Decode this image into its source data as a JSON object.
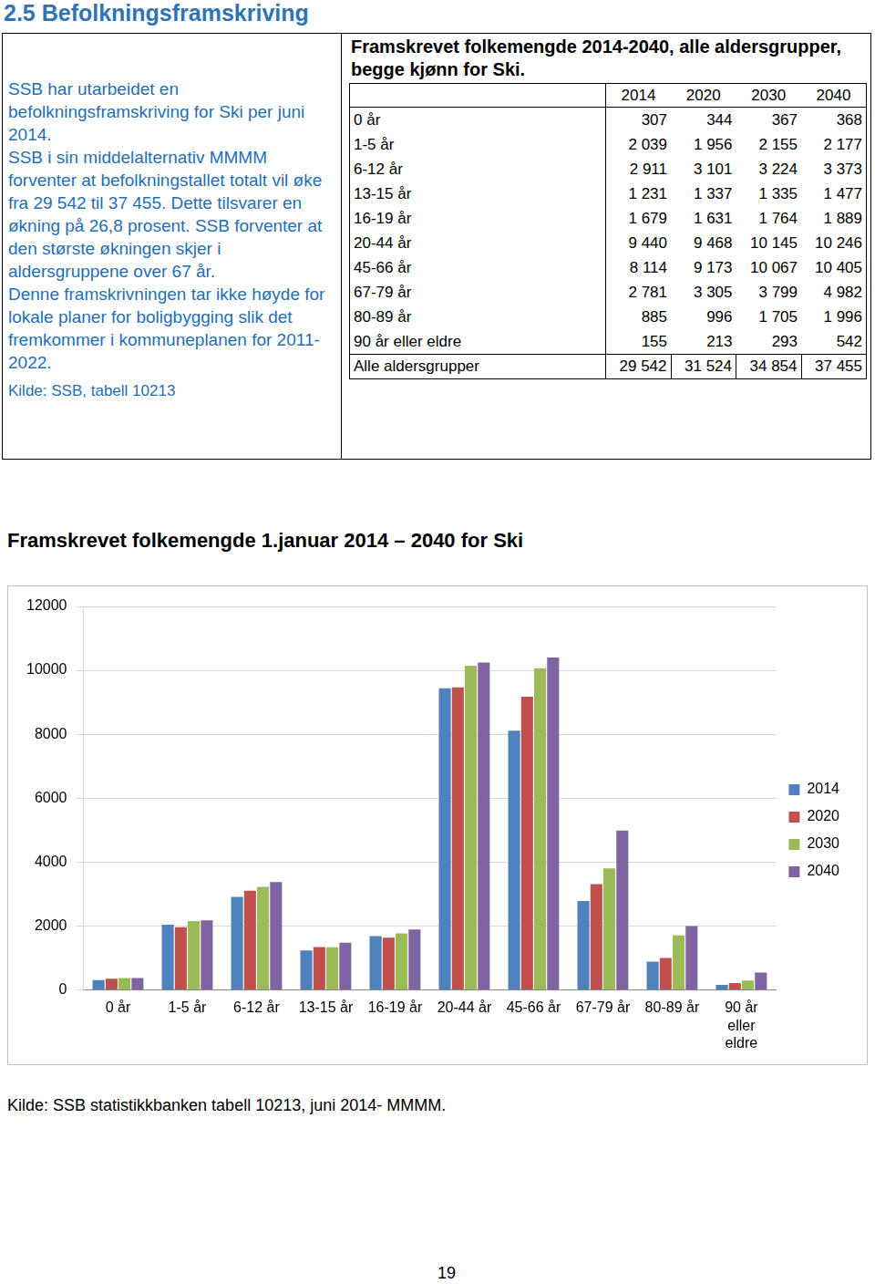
{
  "heading": "2.5 Befolkningsframskriving",
  "intro": {
    "paragraphs": [
      "SSB har utarbeidet en befolkningsframskriving for Ski per juni 2014.",
      "SSB i sin middelalternativ MMMM forventer at befolkningstallet totalt vil øke fra 29 542 til 37 455. Dette tilsvarer en økning på 26,8 prosent. SSB forventer at den største økningen skjer i aldersgruppene over 67 år.",
      "Denne framskrivningen tar ikke høyde for lokale planer for boligbygging slik det fremkommer i kommuneplanen for 2011-2022."
    ],
    "source": "Kilde: SSB, tabell 10213"
  },
  "table": {
    "title": "Framskrevet folkemengde 2014-2040, alle aldersgrupper, begge kjønn for Ski.",
    "columns": [
      "2014",
      "2020",
      "2030",
      "2040"
    ],
    "rows": [
      {
        "label": "0 år",
        "values": [
          "307",
          "344",
          "367",
          "368"
        ]
      },
      {
        "label": "1-5 år",
        "values": [
          "2 039",
          "1 956",
          "2 155",
          "2 177"
        ]
      },
      {
        "label": "6-12 år",
        "values": [
          "2 911",
          "3 101",
          "3 224",
          "3 373"
        ]
      },
      {
        "label": "13-15 år",
        "values": [
          "1 231",
          "1 337",
          "1 335",
          "1 477"
        ]
      },
      {
        "label": "16-19 år",
        "values": [
          "1 679",
          "1 631",
          "1 764",
          "1 889"
        ]
      },
      {
        "label": "20-44 år",
        "values": [
          "9 440",
          "9 468",
          "10 145",
          "10 246"
        ]
      },
      {
        "label": "45-66 år",
        "values": [
          "8 114",
          "9 173",
          "10 067",
          "10 405"
        ]
      },
      {
        "label": "67-79 år",
        "values": [
          "2 781",
          "3 305",
          "3 799",
          "4 982"
        ]
      },
      {
        "label": "80-89 år",
        "values": [
          "885",
          "996",
          "1 705",
          "1 996"
        ]
      },
      {
        "label": "90 år eller eldre",
        "values": [
          "155",
          "213",
          "293",
          "542"
        ]
      },
      {
        "label": "Alle aldersgrupper",
        "values": [
          "29 542",
          "31 524",
          "34 854",
          "37 455"
        ]
      }
    ]
  },
  "chart_data": {
    "type": "bar",
    "title": "Framskrevet folkemengde 1.januar 2014 – 2040 for Ski",
    "categories": [
      "0 år",
      "1-5 år",
      "6-12 år",
      "13-15 år",
      "16-19 år",
      "20-44 år",
      "45-66 år",
      "67-79 år",
      "80-89 år",
      "90 år eller eldre"
    ],
    "series": [
      {
        "name": "2014",
        "color": "#4f81bd",
        "values": [
          307,
          2039,
          2911,
          1231,
          1679,
          9440,
          8114,
          2781,
          885,
          155
        ]
      },
      {
        "name": "2020",
        "color": "#c0504d",
        "values": [
          344,
          1956,
          3101,
          1337,
          1631,
          9468,
          9173,
          3305,
          996,
          213
        ]
      },
      {
        "name": "2030",
        "color": "#9bbb59",
        "values": [
          367,
          2155,
          3224,
          1335,
          1764,
          10145,
          10067,
          3799,
          1705,
          293
        ]
      },
      {
        "name": "2040",
        "color": "#8064a2",
        "values": [
          368,
          2177,
          3373,
          1477,
          1889,
          10246,
          10405,
          4982,
          1996,
          542
        ]
      }
    ],
    "ylim": [
      0,
      12000
    ],
    "yticks": [
      0,
      2000,
      4000,
      6000,
      8000,
      10000,
      12000
    ],
    "grid": true,
    "legend": "right"
  },
  "source": "Kilde: SSB statistikkbanken tabell 10213, juni 2014- MMMM.",
  "page_number": "19"
}
